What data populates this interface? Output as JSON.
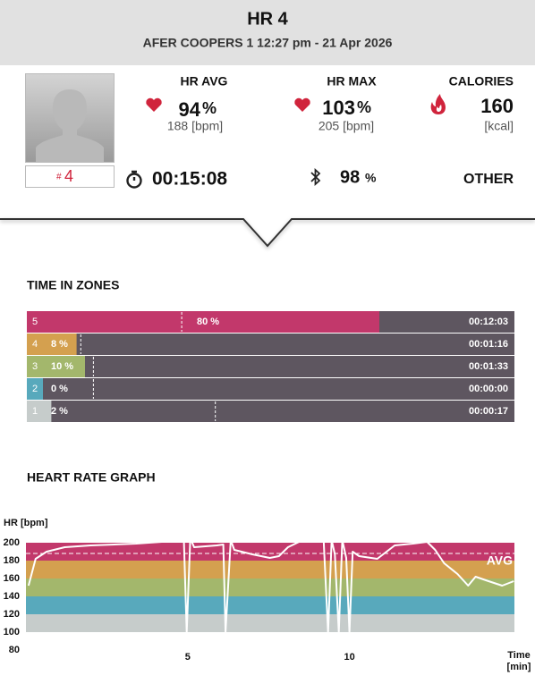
{
  "header": {
    "title": "HR 4",
    "subtitle": "AFER COOPERS 1 12:27 pm - 21 Apr 2026"
  },
  "player": {
    "hash": "#",
    "number": "4"
  },
  "stats": {
    "hr_avg": {
      "label": "HR AVG",
      "value": "94",
      "unit": "%",
      "detail": "188 [bpm]"
    },
    "hr_max": {
      "label": "HR MAX",
      "value": "103",
      "unit": "%",
      "detail": "205 [bpm]"
    },
    "calories": {
      "label": "CALORIES",
      "value": "160",
      "detail": "[kcal]"
    },
    "duration": "00:15:08",
    "signal": {
      "value": "98",
      "unit": "%"
    },
    "type": "OTHER"
  },
  "zones": {
    "title": "TIME IN ZONES",
    "rows": [
      {
        "zone": "5",
        "percent": 80,
        "percent_label": "80 %",
        "marker": 33,
        "time": "00:12:03",
        "color": "#c2386b"
      },
      {
        "zone": "4",
        "percent": 8,
        "percent_label": "8 %",
        "marker": 9,
        "time": "00:01:16",
        "color": "#d4a04f"
      },
      {
        "zone": "3",
        "percent": 10,
        "percent_label": "10 %",
        "marker": 12,
        "time": "00:01:33",
        "color": "#a3b76c"
      },
      {
        "zone": "2",
        "percent": 0,
        "percent_label": "0 %",
        "marker": 12,
        "time": "00:00:00",
        "color": "#58a9bc"
      },
      {
        "zone": "1",
        "percent": 2,
        "percent_label": "2 %",
        "marker": 41,
        "time": "00:00:17",
        "color": "#c6cccb"
      }
    ]
  },
  "hr_graph": {
    "type": "line",
    "title": "HEART RATE GRAPH",
    "y_label": "HR [bpm]",
    "x_label": [
      "Time",
      "[min]"
    ],
    "xlim": [
      0,
      15.1
    ],
    "ylim": [
      80,
      200
    ],
    "yticks": [
      80,
      100,
      120,
      140,
      160,
      180,
      200
    ],
    "xticks": [
      5,
      10
    ],
    "color": "#ffffff",
    "avg": {
      "value": 188,
      "label": "AVG"
    },
    "bands": [
      {
        "from": 100,
        "to": 120,
        "color": "#c6cccb"
      },
      {
        "from": 120,
        "to": 140,
        "color": "#58a9bc"
      },
      {
        "from": 140,
        "to": 160,
        "color": "#a3b76c"
      },
      {
        "from": 160,
        "to": 180,
        "color": "#d4a04f"
      },
      {
        "from": 180,
        "to": 200,
        "color": "#c2386b"
      }
    ],
    "x": [
      0.08,
      0.3,
      0.64,
      1.2,
      2.0,
      3.4,
      4.2,
      4.72,
      4.88,
      4.97,
      5.08,
      5.2,
      5.9,
      6.1,
      6.17,
      6.33,
      6.44,
      7.0,
      7.54,
      7.82,
      8.1,
      8.5,
      8.8,
      9.2,
      9.34,
      9.45,
      9.55,
      9.67,
      9.78,
      9.9,
      10.0,
      10.1,
      10.3,
      10.86,
      11.4,
      11.96,
      12.4,
      12.65,
      12.93,
      13.34,
      13.67,
      13.9,
      14.3,
      14.72,
      15.08
    ],
    "values": [
      152,
      182,
      190,
      195,
      197,
      199,
      201,
      204,
      204,
      100,
      205,
      195,
      197,
      198,
      100,
      203,
      192,
      187,
      183,
      185,
      195,
      202,
      203,
      204,
      100,
      203,
      187,
      100,
      203,
      183,
      100,
      190,
      185,
      182,
      197,
      199,
      201,
      192,
      177,
      165,
      152,
      162,
      157,
      152,
      157
    ]
  }
}
